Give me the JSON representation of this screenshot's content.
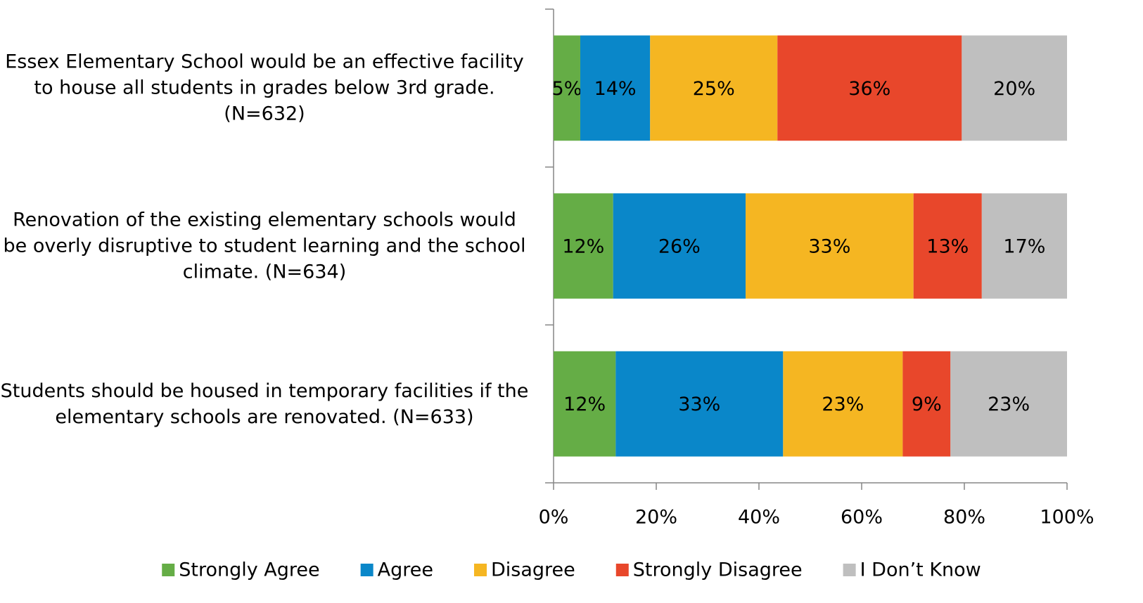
{
  "chart_data": {
    "type": "stacked-bar-horizontal",
    "categories": [
      "Essex Elementary School would be an effective facility to house all students in grades below 3rd grade. (N=632)",
      "Renovation of the existing elementary schools would be overly disruptive to student learning and the school climate. (N=634)",
      "Students should be housed in temporary facilities if the elementary schools are renovated. (N=633)"
    ],
    "series": [
      {
        "name": "Strongly Agree",
        "color": "#65ad46",
        "values": [
          5.2,
          11.6,
          12.1
        ],
        "value_labels": [
          "5%",
          "12%",
          "12%"
        ]
      },
      {
        "name": "Agree",
        "color": "#0a87c9",
        "values": [
          13.6,
          25.8,
          32.6
        ],
        "value_labels": [
          "14%",
          "26%",
          "33%"
        ]
      },
      {
        "name": "Disagree",
        "color": "#f5b622",
        "values": [
          24.8,
          32.7,
          23.3
        ],
        "value_labels": [
          "25%",
          "33%",
          "23%"
        ]
      },
      {
        "name": "Strongly Disagree",
        "color": "#e8472b",
        "values": [
          35.9,
          13.3,
          9.3
        ],
        "value_labels": [
          "36%",
          "13%",
          "9%"
        ]
      },
      {
        "name": "I Don’t Know",
        "color": "#bfbfbf",
        "values": [
          20.5,
          16.6,
          22.7
        ],
        "value_labels": [
          "20%",
          "17%",
          "23%"
        ]
      }
    ],
    "xlim": [
      0,
      100
    ],
    "xticks": [
      {
        "value": 0,
        "label": "0%"
      },
      {
        "value": 20,
        "label": "20%"
      },
      {
        "value": 40,
        "label": "40%"
      },
      {
        "value": 60,
        "label": "60%"
      },
      {
        "value": 80,
        "label": "80%"
      },
      {
        "value": 100,
        "label": "100%"
      }
    ],
    "legend": "bottom"
  }
}
